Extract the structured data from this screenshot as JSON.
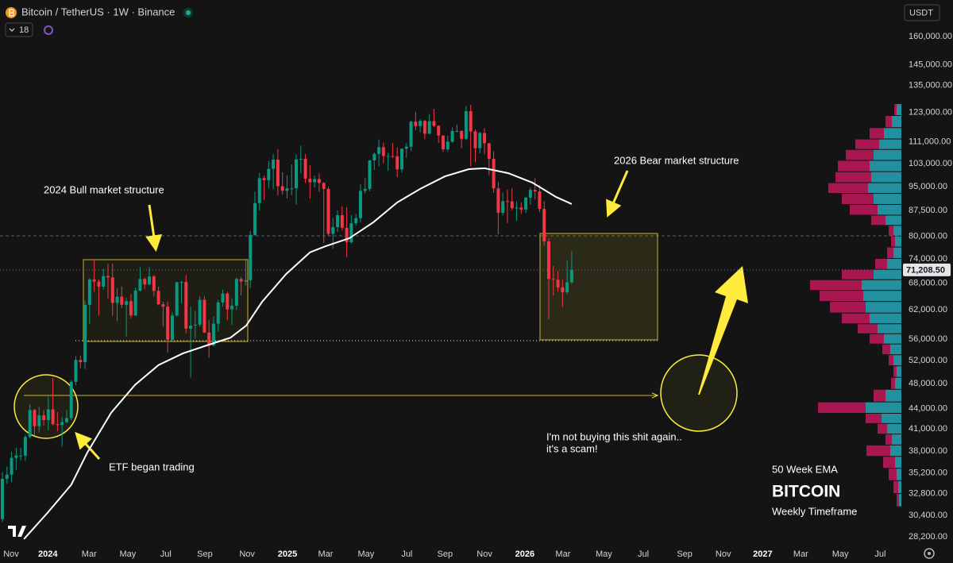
{
  "header": {
    "symbol": "Bitcoin / TetherUS · 1W · Binance",
    "indicator_count": 18,
    "currency": "USDT"
  },
  "chart_data": {
    "type": "candlestick",
    "title": "BITCOIN",
    "subtitle": "Weekly Timeframe",
    "annotations": {
      "bull_structure": "2024 Bull market structure",
      "bear_structure": "2026 Bear market structure",
      "etf": "ETF began trading",
      "quote_line1": "I'm not buying this shit again..",
      "quote_line2": "it's a scam!",
      "ema_label": "50 Week EMA"
    },
    "up_color": "#089981",
    "down_color": "#f23645",
    "open": [
      30000,
      34500,
      35000,
      37100,
      37400,
      37400,
      39900,
      43800,
      41400,
      43000,
      42300,
      43900,
      41700,
      41600,
      42000,
      42600,
      48300,
      52100,
      51700,
      63100,
      68900,
      68400,
      67200,
      69700,
      69400,
      63500,
      64900,
      63100,
      63900,
      60800,
      66300,
      69000,
      67700,
      69600,
      66200,
      63200,
      62700,
      55900,
      60800,
      68200,
      68300,
      58100,
      58700,
      58900,
      64200,
      57300,
      54800,
      59100,
      63600,
      65600,
      62100,
      62900,
      69000,
      68400,
      68700,
      80400,
      89800,
      97900,
      97200,
      101100,
      104400,
      95200,
      93700,
      94500,
      94500,
      104500,
      104700,
      97700,
      96500,
      97600,
      96300,
      94300,
      80700,
      82600,
      86100,
      82400,
      78400,
      83700,
      85200,
      93700,
      94300,
      104100,
      106500,
      109000,
      105700,
      105700,
      105600,
      100900,
      108400,
      109200,
      119100,
      117300,
      119400,
      114200,
      119300,
      117400,
      113500,
      108200,
      111100,
      115300,
      115300,
      112200,
      123500,
      115100,
      108600,
      114500,
      110500,
      104700,
      94500,
      86800,
      90400,
      90300,
      88200,
      88400,
      87800,
      91500,
      94000,
      93500,
      88000,
      78600,
      69000,
      68800,
      67000,
      65900,
      68200
    ],
    "high": [
      35300,
      36000,
      37900,
      38400,
      38400,
      40200,
      44700,
      44000,
      44300,
      43800,
      45900,
      49000,
      43500,
      42800,
      43800,
      48600,
      52800,
      52900,
      64000,
      69200,
      73800,
      68900,
      71500,
      72700,
      72800,
      66800,
      67200,
      64700,
      65500,
      67000,
      71900,
      69300,
      71900,
      70000,
      67200,
      63800,
      63800,
      61500,
      68400,
      68500,
      70000,
      62700,
      61800,
      65000,
      65000,
      59800,
      60600,
      64100,
      66500,
      66000,
      64500,
      69400,
      69500,
      73600,
      81500,
      93400,
      99600,
      98800,
      104000,
      106500,
      108300,
      99900,
      98900,
      102700,
      106300,
      109600,
      106400,
      102500,
      98800,
      99500,
      96500,
      95000,
      85300,
      87500,
      88800,
      88500,
      86100,
      86500,
      95800,
      97900,
      104300,
      107100,
      111900,
      110800,
      106800,
      110500,
      108900,
      108500,
      110500,
      119500,
      123200,
      120200,
      119800,
      122300,
      124500,
      117600,
      113600,
      113400,
      116700,
      117900,
      115500,
      125700,
      126200,
      115900,
      114900,
      116400,
      110600,
      107500,
      96600,
      93100,
      94100,
      94600,
      90300,
      90000,
      91800,
      94800,
      97900,
      95500,
      90400,
      79500,
      72200,
      70900,
      68800,
      73500,
      76000
    ],
    "low": [
      29700,
      33900,
      34100,
      35600,
      36800,
      36700,
      39700,
      40200,
      40500,
      41500,
      40800,
      41500,
      40700,
      38600,
      41800,
      42300,
      47700,
      50600,
      50500,
      59000,
      66000,
      60800,
      66500,
      64500,
      60700,
      59600,
      62400,
      56500,
      60200,
      60700,
      66100,
      66600,
      67500,
      65000,
      63000,
      58500,
      53500,
      55700,
      60600,
      63400,
      57200,
      49000,
      56100,
      58500,
      57200,
      52500,
      54600,
      57500,
      62700,
      59800,
      58900,
      62000,
      65200,
      67500,
      66800,
      80200,
      87500,
      90800,
      94500,
      94200,
      92200,
      92500,
      91200,
      92200,
      89300,
      99500,
      96200,
      91200,
      94800,
      93400,
      78200,
      80000,
      76600,
      81200,
      81600,
      74500,
      78000,
      83000,
      83900,
      92800,
      93500,
      100700,
      102100,
      103100,
      100400,
      105000,
      98200,
      99800,
      105100,
      107500,
      115700,
      114700,
      112000,
      114100,
      116800,
      110600,
      107300,
      107300,
      110600,
      114700,
      108600,
      111800,
      102000,
      103500,
      106700,
      106300,
      98900,
      93000,
      80600,
      86000,
      83800,
      87600,
      84400,
      86400,
      86800,
      89300,
      91000,
      87000,
      77500,
      60000,
      65100,
      66000,
      62500,
      65500,
      67800
    ],
    "close": [
      34500,
      35000,
      37100,
      37400,
      37400,
      39900,
      43800,
      41400,
      43000,
      42300,
      43900,
      41700,
      41600,
      42000,
      42600,
      48300,
      52100,
      51700,
      63100,
      68900,
      68400,
      67200,
      69700,
      69400,
      63500,
      64900,
      63100,
      63900,
      60800,
      66300,
      69000,
      67700,
      69600,
      66200,
      63200,
      62700,
      55900,
      60800,
      68200,
      68300,
      58100,
      58700,
      58900,
      64200,
      57300,
      54800,
      59100,
      63600,
      65600,
      62100,
      62900,
      69000,
      68400,
      68700,
      80400,
      89800,
      97900,
      97200,
      101100,
      104400,
      95200,
      93700,
      94500,
      94500,
      104500,
      104700,
      97700,
      96500,
      97600,
      96300,
      94300,
      80700,
      82600,
      86100,
      82400,
      78400,
      83700,
      85200,
      93700,
      94300,
      104100,
      106500,
      109000,
      105700,
      105700,
      105600,
      100900,
      108400,
      109200,
      119100,
      117300,
      119400,
      114200,
      119300,
      117400,
      113500,
      108200,
      111100,
      115300,
      115300,
      112200,
      123500,
      115100,
      108600,
      114500,
      110500,
      104700,
      94500,
      86800,
      90400,
      90300,
      88200,
      88400,
      87800,
      91500,
      94000,
      93500,
      88000,
      78600,
      69000,
      68800,
      67000,
      65900,
      68200,
      71208.5
    ],
    "ema": {
      "color": "#ffffff",
      "x": [
        4.7,
        9.9,
        15,
        18.5,
        23.7,
        28.9,
        34,
        39.3,
        44.5,
        49.7,
        53.1,
        56.6,
        61.8,
        67,
        70.4,
        75.6,
        80.8,
        86,
        91.2,
        96.4,
        101.6,
        105,
        110.2,
        115.4,
        120.6,
        124
      ],
      "values": [
        28000,
        30700,
        33800,
        37800,
        43400,
        47800,
        51200,
        53300,
        54800,
        56300,
        58700,
        63800,
        70200,
        75700,
        77300,
        79500,
        84000,
        90000,
        94500,
        98500,
        101000,
        101300,
        99600,
        96400,
        91700,
        89500
      ]
    },
    "last_price": {
      "value": 71208.5,
      "label": "71,208.50"
    },
    "volume_profile": {
      "up_color": "#26a6b8",
      "down_color": "#c2185b",
      "prices": [
        124000,
        119000,
        114000,
        110000,
        106000,
        102000,
        98000,
        94500,
        91000,
        87500,
        84500,
        81500,
        78500,
        75500,
        72500,
        70000,
        67500,
        65000,
        62500,
        60000,
        58000,
        56000,
        54000,
        52000,
        50000,
        48000,
        46000,
        44000,
        42500,
        41000,
        39500,
        38000,
        36500,
        35000,
        33500,
        32000
      ],
      "up": [
        6,
        12,
        22,
        28,
        35,
        40,
        38,
        42,
        35,
        30,
        20,
        10,
        8,
        10,
        18,
        35,
        50,
        48,
        45,
        40,
        30,
        22,
        14,
        10,
        6,
        8,
        20,
        45,
        25,
        18,
        12,
        14,
        8,
        6,
        4,
        3
      ],
      "down": [
        3,
        8,
        18,
        30,
        35,
        40,
        45,
        50,
        40,
        35,
        18,
        6,
        5,
        8,
        15,
        40,
        65,
        55,
        45,
        35,
        25,
        18,
        10,
        6,
        4,
        5,
        15,
        60,
        20,
        12,
        8,
        30,
        15,
        10,
        6,
        3
      ]
    },
    "log_scale": true,
    "grid": false,
    "ylim": [
      27300,
      181600
    ],
    "yticks": [
      {
        "value": 160000,
        "label": "160,000.00"
      },
      {
        "value": 145000,
        "label": "145,000.00"
      },
      {
        "value": 135000,
        "label": "135,000.00"
      },
      {
        "value": 123000,
        "label": "123,000.00"
      },
      {
        "value": 111000,
        "label": "111,000.00"
      },
      {
        "value": 103000,
        "label": "103,000.00"
      },
      {
        "value": 95000,
        "label": "95,000.00"
      },
      {
        "value": 87500,
        "label": "87,500.00"
      },
      {
        "value": 80000,
        "label": "80,000.00"
      },
      {
        "value": 74000,
        "label": "74,000.00"
      },
      {
        "value": 68000,
        "label": "68,000.00"
      },
      {
        "value": 62000,
        "label": "62,000.00"
      },
      {
        "value": 56000,
        "label": "56,000.00"
      },
      {
        "value": 52000,
        "label": "52,000.00"
      },
      {
        "value": 48000,
        "label": "48,000.00"
      },
      {
        "value": 44000,
        "label": "44,000.00"
      },
      {
        "value": 41000,
        "label": "41,000.00"
      },
      {
        "value": 38000,
        "label": "38,000.00"
      },
      {
        "value": 35200,
        "label": "35,200.00"
      },
      {
        "value": 32800,
        "label": "32,800.00"
      },
      {
        "value": 30400,
        "label": "30,400.00"
      },
      {
        "value": 28200,
        "label": "28,200.00"
      }
    ],
    "xlim": [
      -0.52,
      195.8
    ],
    "xticks": [
      {
        "value": 1.9,
        "label": "Nov"
      },
      {
        "value": 9.9,
        "label": "2024"
      },
      {
        "value": 18.9,
        "label": "Mar"
      },
      {
        "value": 27.3,
        "label": "May"
      },
      {
        "value": 35.6,
        "label": "Jul"
      },
      {
        "value": 44.1,
        "label": "Sep"
      },
      {
        "value": 53.3,
        "label": "Nov"
      },
      {
        "value": 62.1,
        "label": "2025"
      },
      {
        "value": 70.4,
        "label": "Mar"
      },
      {
        "value": 79.2,
        "label": "May"
      },
      {
        "value": 88.1,
        "label": "Jul"
      },
      {
        "value": 96.4,
        "label": "Sep"
      },
      {
        "value": 105,
        "label": "Nov"
      },
      {
        "value": 113.8,
        "label": "2026"
      },
      {
        "value": 122.1,
        "label": "Mar"
      },
      {
        "value": 131,
        "label": "May"
      },
      {
        "value": 139.6,
        "label": "Jul"
      },
      {
        "value": 148.6,
        "label": "Sep"
      },
      {
        "value": 157,
        "label": "Nov"
      },
      {
        "value": 165.6,
        "label": "2027"
      },
      {
        "value": 173.9,
        "label": "Mar"
      },
      {
        "value": 182.5,
        "label": "May"
      },
      {
        "value": 191.2,
        "label": "Jul"
      }
    ]
  }
}
